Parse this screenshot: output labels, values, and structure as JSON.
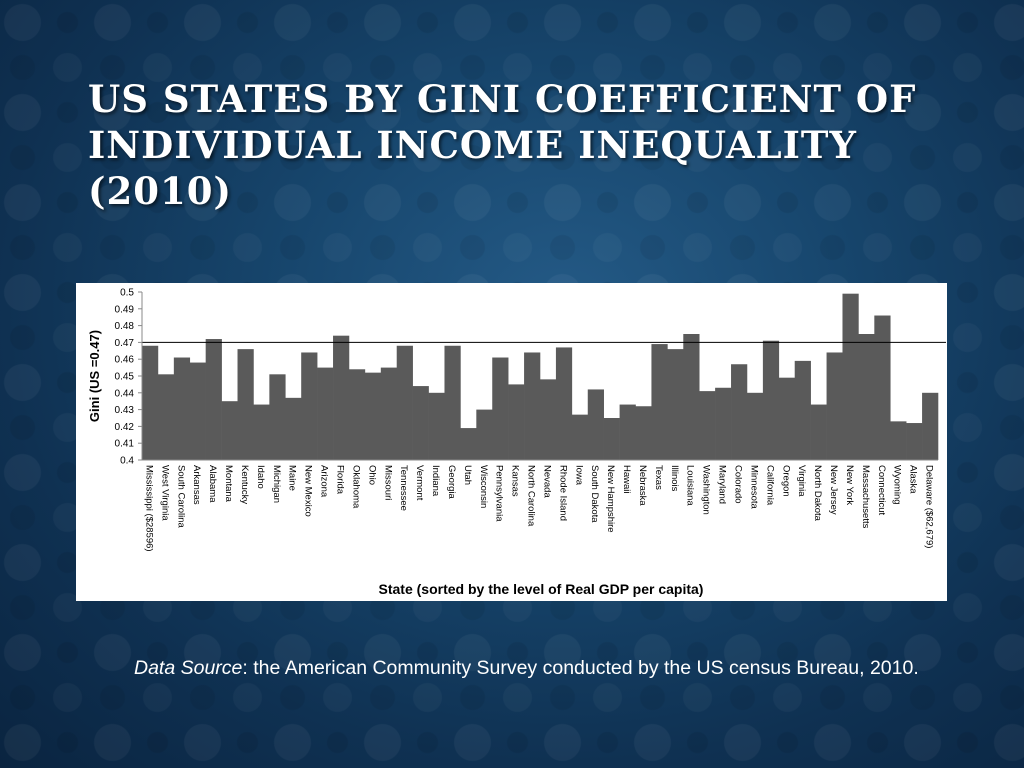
{
  "slide": {
    "title": "US States by Gini Coefficient of Individual Income Inequality (2010)",
    "caption_label": "Data Source",
    "caption_text": ": the American Community Survey conducted by the US census Bureau, 2010."
  },
  "colors": {
    "bar": "#5a5a5a",
    "reference_line": "#000000",
    "panel": "#ffffff",
    "text": "#000000"
  },
  "chart_data": {
    "type": "bar",
    "title": "",
    "xlabel": "State (sorted by the level of Real GDP per capita)",
    "ylabel": "Gini (US =0.47)",
    "ylim": [
      0.4,
      0.5
    ],
    "yticks": [
      "0.5",
      "0.49",
      "0.48",
      "0.47",
      "0.46",
      "0.45",
      "0.44",
      "0.43",
      "0.42",
      "0.41",
      "0.4"
    ],
    "reference_line": 0.47,
    "grid": false,
    "legend": "none",
    "categories": [
      "Mississippi ($28596)",
      "West Virginia",
      "South Carolina",
      "Arkansas",
      "Alabama",
      "Montana",
      "Kentucky",
      "Idaho",
      "Michigan",
      "Maine",
      "New Mexico",
      "Arizona",
      "Florida",
      "Oklahoma",
      "Ohio",
      "Missouri",
      "Tennessee",
      "Vermont",
      "Indiana",
      "Georgia",
      "Utah",
      "Wisconsin",
      "Pennsylvania",
      "Kansas",
      "North Carolina",
      "Nevada",
      "Rhode Island",
      "Iowa",
      "South Dakota",
      "New Hampshire",
      "Hawaii",
      "Nebraska",
      "Texas",
      "Illinois",
      "Louisiana",
      "Washington",
      "Maryland",
      "Colorado",
      "Minnesota",
      "California",
      "Oregon",
      "Virginia",
      "North Dakota",
      "New Jersey",
      "New York",
      "Massachusetts",
      "Connecticut",
      "Wyoming",
      "Alaska",
      "Delaware ($62,679)"
    ],
    "values": [
      0.468,
      0.451,
      0.461,
      0.458,
      0.472,
      0.435,
      0.466,
      0.433,
      0.451,
      0.437,
      0.464,
      0.455,
      0.474,
      0.454,
      0.452,
      0.455,
      0.468,
      0.444,
      0.44,
      0.468,
      0.419,
      0.43,
      0.461,
      0.445,
      0.464,
      0.448,
      0.467,
      0.427,
      0.442,
      0.425,
      0.433,
      0.432,
      0.469,
      0.466,
      0.475,
      0.441,
      0.443,
      0.457,
      0.44,
      0.471,
      0.449,
      0.459,
      0.433,
      0.464,
      0.499,
      0.475,
      0.486,
      0.423,
      0.422,
      0.44
    ]
  }
}
